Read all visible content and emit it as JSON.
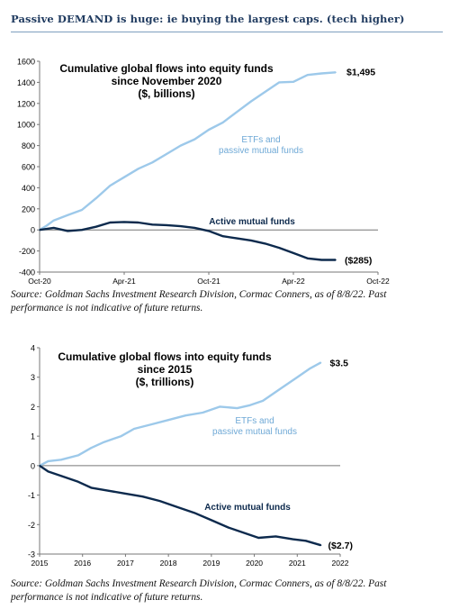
{
  "header": {
    "title": "Passive DEMAND is huge: ie buying the largest caps. (tech higher)"
  },
  "colors": {
    "passive": "#9dc9ea",
    "active": "#0d2a4d",
    "axis": "#777777",
    "text": "#000000",
    "label_passive": "#6fa9d6"
  },
  "chart_data": [
    {
      "type": "line",
      "title": [
        "Cumulative global flows into equity funds",
        "since November 2020",
        "($, billions)"
      ],
      "xlabel": "",
      "ylabel": "",
      "xticks": [
        "Oct-20",
        "Apr-21",
        "Oct-21",
        "Apr-22",
        "Oct-22"
      ],
      "xlim": [
        0,
        24
      ],
      "ylim": [
        -400,
        1600
      ],
      "yticks": [
        "1600",
        "1400",
        "1200",
        "1000",
        "800",
        "600",
        "400",
        "200",
        "0",
        "-200",
        "-400"
      ],
      "series": [
        {
          "name": "ETFs and passive mutual funds",
          "label": [
            "ETFs and",
            "passive mutual funds"
          ],
          "end_label": "$1,495",
          "x": [
            0,
            0.5,
            1,
            2,
            3,
            4,
            5,
            6,
            7,
            8,
            9,
            10,
            11,
            12,
            13,
            14,
            15,
            16,
            17,
            18,
            19,
            20,
            21
          ],
          "values": [
            0,
            40,
            90,
            140,
            190,
            300,
            420,
            500,
            580,
            640,
            720,
            800,
            860,
            950,
            1020,
            1120,
            1220,
            1310,
            1400,
            1405,
            1470,
            1485,
            1495
          ]
        },
        {
          "name": "Active mutual funds",
          "label": [
            "Active mutual funds"
          ],
          "end_label": "($285)",
          "x": [
            0,
            1,
            2,
            3,
            4,
            5,
            6,
            7,
            8,
            9,
            10,
            11,
            12,
            13,
            14,
            15,
            16,
            17,
            18,
            19,
            20,
            21
          ],
          "values": [
            0,
            20,
            -10,
            0,
            30,
            70,
            75,
            70,
            50,
            45,
            35,
            20,
            -10,
            -60,
            -80,
            -100,
            -130,
            -170,
            -220,
            -270,
            -285,
            -285
          ]
        }
      ]
    },
    {
      "type": "line",
      "title": [
        "Cumulative global flows into equity funds",
        "since 2015",
        "($, trillions)"
      ],
      "xlabel": "",
      "ylabel": "",
      "xticks": [
        "2015",
        "2016",
        "2017",
        "2018",
        "2019",
        "2020",
        "2021",
        "2022"
      ],
      "xlim": [
        2015,
        2022
      ],
      "ylim": [
        -3,
        4
      ],
      "yticks": [
        "4",
        "3",
        "2",
        "1",
        "0",
        "-1",
        "-2",
        "-3"
      ],
      "series": [
        {
          "name": "ETFs and passive mutual funds",
          "label": [
            "ETFs and",
            "passive mutual funds"
          ],
          "end_label": "$3.5",
          "x": [
            2015,
            2015.2,
            2015.5,
            2015.9,
            2016.2,
            2016.5,
            2016.9,
            2017.2,
            2017.6,
            2018.0,
            2018.4,
            2018.8,
            2019.2,
            2019.6,
            2019.9,
            2020.2,
            2020.6,
            2021.0,
            2021.3,
            2021.55
          ],
          "values": [
            0,
            0.15,
            0.2,
            0.35,
            0.6,
            0.8,
            1.0,
            1.25,
            1.4,
            1.55,
            1.7,
            1.8,
            2.0,
            1.95,
            2.05,
            2.2,
            2.6,
            3.0,
            3.3,
            3.5
          ]
        },
        {
          "name": "Active mutual funds",
          "label": [
            "Active mutual funds"
          ],
          "end_label": "($2.7)",
          "x": [
            2015,
            2015.2,
            2015.5,
            2015.9,
            2016.2,
            2016.6,
            2017.0,
            2017.4,
            2017.8,
            2018.2,
            2018.6,
            2019.0,
            2019.4,
            2019.8,
            2020.1,
            2020.5,
            2020.9,
            2021.2,
            2021.55
          ],
          "values": [
            0,
            -0.2,
            -0.35,
            -0.55,
            -0.75,
            -0.85,
            -0.95,
            -1.05,
            -1.2,
            -1.4,
            -1.6,
            -1.85,
            -2.1,
            -2.3,
            -2.45,
            -2.4,
            -2.5,
            -2.55,
            -2.7
          ]
        }
      ]
    }
  ],
  "sources": [
    "Source: Goldman Sachs Investment Research Division, Cormac Conners, as of 8/8/22. Past performance is not indicative of future returns.",
    "Source: Goldman Sachs Investment Research Division, Cormac Conners, as of 8/8/22. Past performance is not indicative of future returns."
  ]
}
